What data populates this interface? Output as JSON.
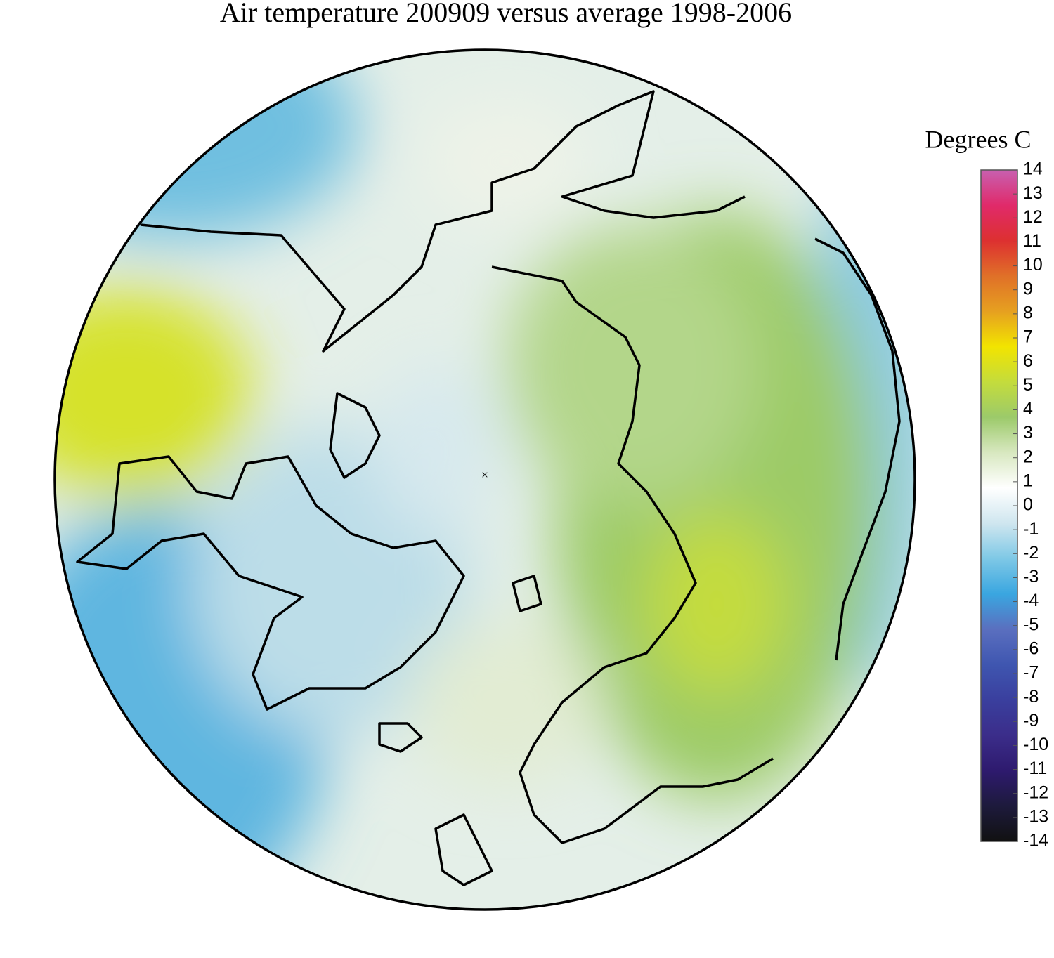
{
  "title": "Air temperature 200909 versus average 1998-2006",
  "colorbar": {
    "label": "Degrees C",
    "lim": [
      -14,
      14
    ],
    "ticks": [
      14,
      13,
      12,
      11,
      10,
      9,
      8,
      7,
      6,
      5,
      4,
      3,
      2,
      1,
      0,
      -1,
      -2,
      -3,
      -4,
      -5,
      -6,
      -7,
      -8,
      -9,
      -10,
      -11,
      -12,
      -13,
      -14
    ],
    "colors": [
      "#111111",
      "#1d1a3c",
      "#2e1a6e",
      "#3b2d8a",
      "#3a3f9e",
      "#3f56b0",
      "#5a6fbf",
      "#3aa6e0",
      "#7ec8e6",
      "#cfe6ef",
      "#ffffff",
      "#d8e8c0",
      "#9cca6a",
      "#c4dc3c",
      "#f2e400",
      "#e6a020",
      "#e07028",
      "#dd3030",
      "#e02a6a",
      "#c860b0"
    ]
  }
}
